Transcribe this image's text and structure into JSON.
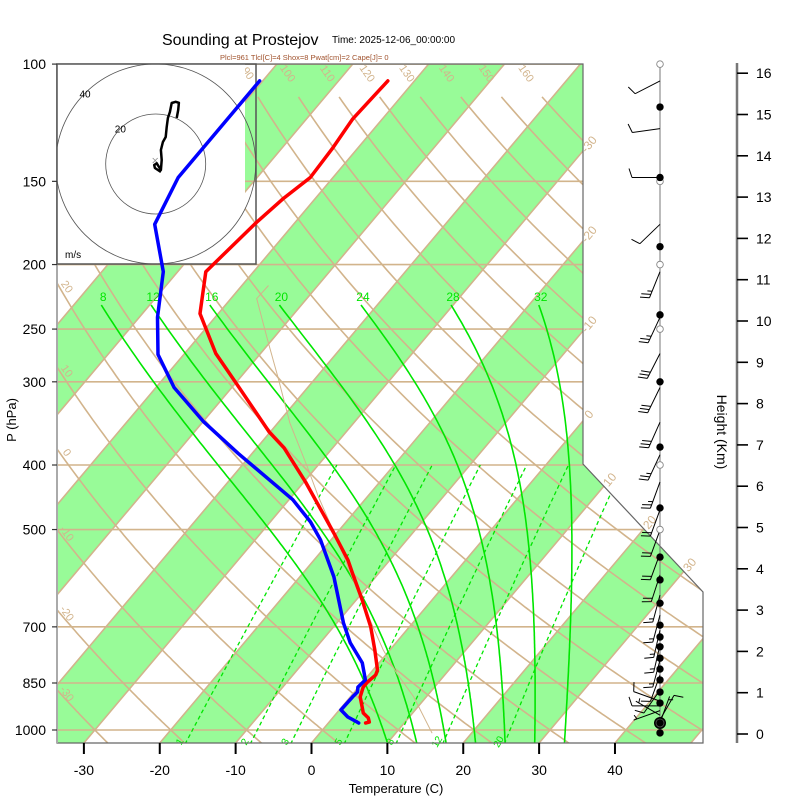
{
  "figure": {
    "title": "Sounding at Prostejov",
    "time_label": "Time: 2025-12-06_00:00:00",
    "indices": "Plcl=961 Tlcl[C]=4 Shox=8 Pwat[cm]=2 Cape[J]= 0"
  },
  "colors": {
    "temperature": "#ff0000",
    "dewpoint": "#0000ff",
    "band_fill": "#98fb98",
    "grid": "#d2b48c",
    "moist": "#00e600",
    "indices_text": "#a0522d",
    "hodograph_trace": "#000000",
    "outline": "#666666"
  },
  "chart_data": {
    "type": "line",
    "diagram": "skew-T log-P",
    "title": "Sounding at Prostejov",
    "subtitle": "Time: 2025-12-06_00:00:00",
    "annotation": "Plcl=961 Tlcl[C]=4 Shox=8 Pwat[cm]=2 Cape[J]= 0",
    "xlabel": "Temperature (C)",
    "ylabel": "P (hPa)",
    "y2label": "Height (Km)",
    "x_ticks": [
      -30,
      -20,
      -10,
      0,
      10,
      20,
      30,
      40
    ],
    "y_ticks": [
      100,
      150,
      200,
      250,
      300,
      400,
      500,
      700,
      850,
      1000
    ],
    "y2_ticks": [
      0,
      1,
      2,
      3,
      4,
      5,
      6,
      7,
      8,
      9,
      10,
      11,
      12,
      13,
      14,
      15,
      16
    ],
    "xlim": [
      -33.5,
      51.5
    ],
    "ylim": [
      1050,
      100
    ],
    "y2lim": [
      0,
      16.2
    ],
    "grid": true,
    "series": [
      {
        "name": "Temperature",
        "color": "#ff0000",
        "points": [
          {
            "p": 976,
            "t": 4.9
          },
          {
            "p": 973,
            "t": 5.3
          },
          {
            "p": 959,
            "t": 4.7
          },
          {
            "p": 943,
            "t": 3.5
          },
          {
            "p": 892,
            "t": 1.3
          },
          {
            "p": 862,
            "t": 0.6
          },
          {
            "p": 847,
            "t": 0.6
          },
          {
            "p": 827,
            "t": 0.9
          },
          {
            "p": 813,
            "t": 0.6
          },
          {
            "p": 758,
            "t": -2.0
          },
          {
            "p": 700,
            "t": -5.1
          },
          {
            "p": 638,
            "t": -9.2
          },
          {
            "p": 581,
            "t": -13.5
          },
          {
            "p": 556,
            "t": -15.5
          },
          {
            "p": 506,
            "t": -20.4
          },
          {
            "p": 424,
            "t": -29.8
          },
          {
            "p": 377,
            "t": -36.4
          },
          {
            "p": 357,
            "t": -40.1
          },
          {
            "p": 302,
            "t": -49.8
          },
          {
            "p": 272,
            "t": -55.9
          },
          {
            "p": 237,
            "t": -62.4
          },
          {
            "p": 205,
            "t": -66.3
          },
          {
            "p": 173,
            "t": -65.1
          },
          {
            "p": 159,
            "t": -64.2
          },
          {
            "p": 148,
            "t": -63.0
          },
          {
            "p": 134,
            "t": -63.3
          },
          {
            "p": 121,
            "t": -63.9
          },
          {
            "p": 106,
            "t": -63.5
          }
        ]
      },
      {
        "name": "Dewpoint",
        "color": "#0000ff",
        "points": [
          {
            "p": 976,
            "t": 4.0
          },
          {
            "p": 973,
            "t": 3.7
          },
          {
            "p": 956,
            "t": 1.9
          },
          {
            "p": 933,
            "t": 0.2
          },
          {
            "p": 892,
            "t": 0.3
          },
          {
            "p": 877,
            "t": 0.4
          },
          {
            "p": 862,
            "t": -0.1
          },
          {
            "p": 841,
            "t": 0.1
          },
          {
            "p": 793,
            "t": -2.2
          },
          {
            "p": 740,
            "t": -6.0
          },
          {
            "p": 691,
            "t": -9.1
          },
          {
            "p": 589,
            "t": -15.5
          },
          {
            "p": 518,
            "t": -21.4
          },
          {
            "p": 487,
            "t": -24.7
          },
          {
            "p": 451,
            "t": -29.5
          },
          {
            "p": 384,
            "t": -41.9
          },
          {
            "p": 344,
            "t": -50.0
          },
          {
            "p": 306,
            "t": -57.6
          },
          {
            "p": 273,
            "t": -63.4
          },
          {
            "p": 240,
            "t": -67.6
          },
          {
            "p": 205,
            "t": -71.9
          },
          {
            "p": 174,
            "t": -78.3
          },
          {
            "p": 148,
            "t": -80.4
          },
          {
            "p": 106,
            "t": -80.4
          }
        ]
      },
      {
        "name": "Parcel path",
        "color": "#d2b48c",
        "points": [
          {
            "p": 1011,
            "t": 14.8
          },
          {
            "p": 891,
            "t": 8.3
          },
          {
            "p": 822,
            "t": 3.5
          },
          {
            "p": 758,
            "t": -0.9
          },
          {
            "p": 700,
            "t": -4.8
          },
          {
            "p": 616,
            "t": -11.0
          },
          {
            "p": 518,
            "t": -19.2
          },
          {
            "p": 446,
            "t": -26.5
          },
          {
            "p": 402,
            "t": -31.3
          },
          {
            "p": 346,
            "t": -38.4
          },
          {
            "p": 295,
            "t": -45.1
          },
          {
            "p": 260,
            "t": -50.5
          },
          {
            "p": 225,
            "t": -56.6
          },
          {
            "p": 215,
            "t": -56.5
          }
        ]
      }
    ],
    "background": {
      "isotherms": {
        "from": -100,
        "to": 50,
        "step": 10
      },
      "isotherm_labels": [
        -30,
        -20,
        -10,
        0,
        10,
        20,
        30
      ],
      "shaded_bands": {
        "from": -100,
        "to": 40,
        "step": 20,
        "width": 10
      },
      "dry_adiabats_thetaC": [
        -30,
        -20,
        -10,
        0,
        10,
        20,
        30,
        40,
        50,
        60,
        70,
        80,
        90,
        100,
        110,
        120,
        130,
        140,
        150,
        160
      ],
      "dry_adiabat_labels": [
        -30,
        -20,
        -10,
        0,
        10,
        20,
        90,
        100,
        110,
        120,
        130,
        140,
        150,
        160
      ],
      "moist_adiabats_T1000C": [
        8,
        12,
        16,
        20,
        24,
        28,
        32
      ],
      "mixing_ratios_gkg": [
        1,
        2,
        3,
        5,
        8,
        12,
        20
      ]
    },
    "wind": {
      "barbs": [
        {
          "p": 106,
          "dir": 243,
          "spd": 10
        },
        {
          "p": 125,
          "dir": 262,
          "spd": 10
        },
        {
          "p": 148,
          "dir": 270,
          "spd": 10
        },
        {
          "p": 174,
          "dir": 226,
          "spd": 10
        },
        {
          "p": 205,
          "dir": 202,
          "spd": 25
        },
        {
          "p": 240,
          "dir": 205,
          "spd": 25
        },
        {
          "p": 272,
          "dir": 207,
          "spd": 30
        },
        {
          "p": 306,
          "dir": 206,
          "spd": 30
        },
        {
          "p": 345,
          "dir": 204,
          "spd": 30
        },
        {
          "p": 386,
          "dir": 205,
          "spd": 25
        },
        {
          "p": 424,
          "dir": 200,
          "spd": 25
        },
        {
          "p": 467,
          "dir": 200,
          "spd": 20
        },
        {
          "p": 501,
          "dir": 200,
          "spd": 20
        },
        {
          "p": 543,
          "dir": 200,
          "spd": 20
        },
        {
          "p": 585,
          "dir": 198,
          "spd": 20
        },
        {
          "p": 627,
          "dir": 195,
          "spd": 15
        },
        {
          "p": 672,
          "dir": 195,
          "spd": 15
        },
        {
          "p": 708,
          "dir": 193,
          "spd": 15
        },
        {
          "p": 745,
          "dir": 193,
          "spd": 15
        },
        {
          "p": 785,
          "dir": 195,
          "spd": 15
        },
        {
          "p": 827,
          "dir": 200,
          "spd": 10
        },
        {
          "p": 871,
          "dir": 215,
          "spd": 10
        },
        {
          "p": 905,
          "dir": 290,
          "spd": 10
        },
        {
          "p": 920,
          "dir": 270,
          "spd": 10
        },
        {
          "p": 935,
          "dir": 250,
          "spd": 5
        },
        {
          "p": 950,
          "dir": 300,
          "spd": 5
        },
        {
          "p": 965,
          "dir": 30,
          "spd": 10
        },
        {
          "p": 975,
          "dir": 20,
          "spd": 5
        }
      ],
      "markers": [
        {
          "p": 100,
          "type": "open"
        },
        {
          "p": 150,
          "type": "open"
        },
        {
          "p": 200,
          "type": "open"
        },
        {
          "p": 250,
          "type": "open"
        },
        {
          "p": 400,
          "type": "open"
        },
        {
          "p": 500,
          "type": "open"
        },
        {
          "p": 116,
          "type": "filled"
        },
        {
          "p": 148,
          "type": "filled"
        },
        {
          "p": 188,
          "type": "filled"
        },
        {
          "p": 238,
          "type": "filled"
        },
        {
          "p": 300,
          "type": "filled"
        },
        {
          "p": 376,
          "type": "filled"
        },
        {
          "p": 464,
          "type": "filled"
        },
        {
          "p": 550,
          "type": "filled"
        },
        {
          "p": 595,
          "type": "filled"
        },
        {
          "p": 645,
          "type": "filled"
        },
        {
          "p": 696,
          "type": "filled"
        },
        {
          "p": 725,
          "type": "filled"
        },
        {
          "p": 750,
          "type": "filled"
        },
        {
          "p": 780,
          "type": "filled"
        },
        {
          "p": 810,
          "type": "filled"
        },
        {
          "p": 841,
          "type": "filled"
        },
        {
          "p": 877,
          "type": "filled"
        },
        {
          "p": 911,
          "type": "filled"
        },
        {
          "p": 976,
          "type": "filled-large"
        },
        {
          "p": 1010,
          "type": "filled"
        }
      ]
    },
    "hodograph": {
      "unit_label": "m/s",
      "rings": [
        20,
        40
      ],
      "trace": [
        {
          "u": 2.1,
          "v": -3.2
        },
        {
          "u": -0.3,
          "v": -1.6
        },
        {
          "u": -0.6,
          "v": -0.4
        },
        {
          "u": 0.4,
          "v": 0.3
        },
        {
          "u": 2.1,
          "v": -2.4
        },
        {
          "u": 2.4,
          "v": 1.6
        },
        {
          "u": 2.1,
          "v": 5.6
        },
        {
          "u": 2.9,
          "v": 8.8
        },
        {
          "u": 4.0,
          "v": 10.8
        },
        {
          "u": 4.4,
          "v": 14.8
        },
        {
          "u": 4.9,
          "v": 18.4
        },
        {
          "u": 5.7,
          "v": 20.8
        },
        {
          "u": 6.4,
          "v": 24.4
        },
        {
          "u": 8.0,
          "v": 24.9
        },
        {
          "u": 9.3,
          "v": 24.5
        },
        {
          "u": 9.0,
          "v": 21.6
        },
        {
          "u": 8.4,
          "v": 18.4
        }
      ]
    }
  }
}
